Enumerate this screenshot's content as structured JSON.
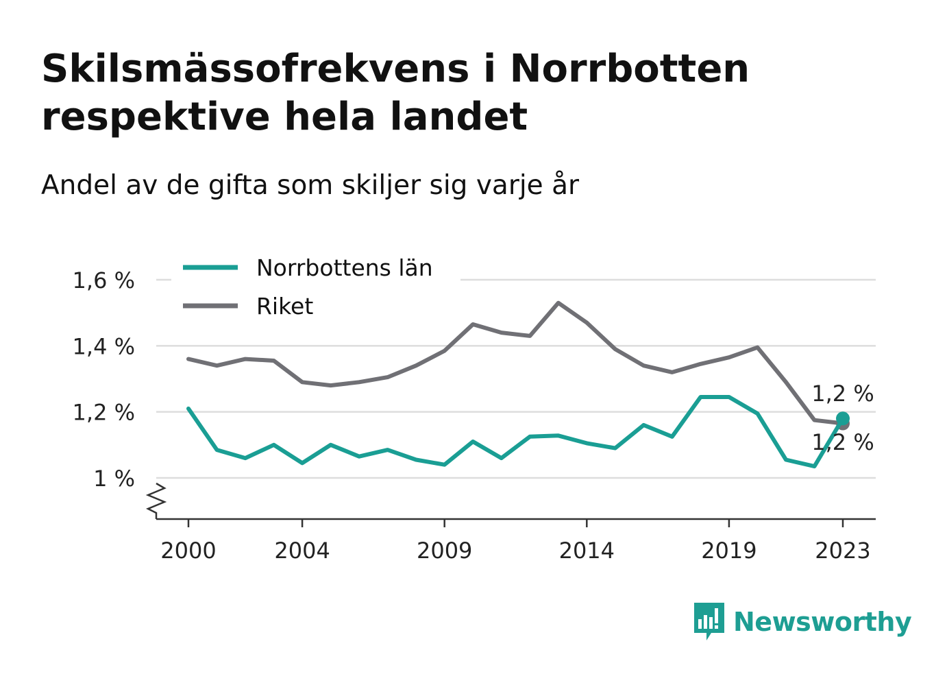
{
  "title": "Skilsmässofrekvens i Norrbotten respektive hela landet",
  "subtitle": "Andel av de gifta som skiljer sig varje år",
  "brand": "Newsworthy",
  "colors": {
    "norrbotten": "#1a9e94",
    "riket": "#707075",
    "grid": "#dddddd",
    "axis": "#333333",
    "brand": "#1e9e93"
  },
  "chart_data": {
    "type": "line",
    "x": [
      2000,
      2001,
      2002,
      2003,
      2004,
      2005,
      2006,
      2007,
      2008,
      2009,
      2010,
      2011,
      2012,
      2013,
      2014,
      2015,
      2016,
      2017,
      2018,
      2019,
      2020,
      2021,
      2022,
      2023
    ],
    "x_ticks": [
      2000,
      2004,
      2009,
      2014,
      2019,
      2023
    ],
    "y_ticks": [
      {
        "value": 1.0,
        "label": "1 %"
      },
      {
        "value": 1.2,
        "label": "1,2 %"
      },
      {
        "value": 1.4,
        "label": "1,4 %"
      },
      {
        "value": 1.6,
        "label": "1,6 %"
      }
    ],
    "ylim": [
      0.88,
      1.62
    ],
    "axis_break": true,
    "grid": true,
    "legend_position": "top-left",
    "series": [
      {
        "name": "Norrbottens län",
        "color": "#1a9e94",
        "values": [
          1.21,
          1.085,
          1.06,
          1.1,
          1.045,
          1.1,
          1.065,
          1.085,
          1.055,
          1.04,
          1.11,
          1.06,
          1.125,
          1.128,
          1.105,
          1.09,
          1.16,
          1.125,
          1.245,
          1.245,
          1.195,
          1.055,
          1.035,
          1.18
        ],
        "end_label": "1,2 %"
      },
      {
        "name": "Riket",
        "color": "#707075",
        "values": [
          1.36,
          1.34,
          1.36,
          1.355,
          1.29,
          1.28,
          1.29,
          1.305,
          1.34,
          1.385,
          1.465,
          1.44,
          1.43,
          1.53,
          1.47,
          1.39,
          1.34,
          1.32,
          1.345,
          1.365,
          1.395,
          1.29,
          1.175,
          1.165
        ],
        "end_label": "1,2 %"
      }
    ]
  }
}
